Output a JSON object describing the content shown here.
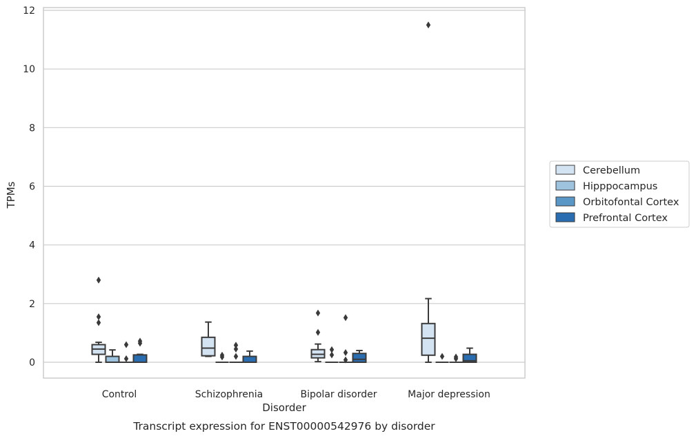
{
  "chart_data": {
    "type": "box",
    "title": "",
    "caption": "Transcript expression for ENST00000542976 by disorder",
    "xlabel": "Disorder",
    "ylabel": "TPMs",
    "ylim": [
      -0.55,
      12.1
    ],
    "yticks": [
      0,
      2,
      4,
      6,
      8,
      10,
      12
    ],
    "grid": "horizontal",
    "legend_position": "right-center",
    "categories": [
      "Control",
      "Schizophrenia",
      "Bipolar disorder",
      "Major depression"
    ],
    "series": [
      {
        "name": "Cerebellum",
        "color": "#d4e3f2",
        "boxes": [
          {
            "whisker_low": 0.0,
            "q1": 0.27,
            "median": 0.45,
            "q3": 0.6,
            "whisker_high": 0.68,
            "outliers": [
              1.35,
              1.55,
              2.8
            ]
          },
          {
            "whisker_low": 0.2,
            "q1": 0.22,
            "median": 0.48,
            "q3": 0.85,
            "whisker_high": 1.37,
            "outliers": []
          },
          {
            "whisker_low": 0.02,
            "q1": 0.15,
            "median": 0.27,
            "q3": 0.43,
            "whisker_high": 0.62,
            "outliers": [
              1.02,
              1.68
            ]
          },
          {
            "whisker_low": 0.0,
            "q1": 0.24,
            "median": 0.82,
            "q3": 1.32,
            "whisker_high": 2.17,
            "outliers": [
              11.5
            ]
          }
        ]
      },
      {
        "name": "Hipppocampus",
        "color": "#9dc3de",
        "boxes": [
          {
            "whisker_low": 0.0,
            "q1": 0.0,
            "median": 0.0,
            "q3": 0.2,
            "whisker_high": 0.42,
            "outliers": []
          },
          {
            "whisker_low": 0.0,
            "q1": 0.0,
            "median": 0.0,
            "q3": 0.0,
            "whisker_high": 0.0,
            "outliers": [
              0.18,
              0.24
            ]
          },
          {
            "whisker_low": 0.0,
            "q1": 0.0,
            "median": 0.0,
            "q3": 0.0,
            "whisker_high": 0.0,
            "outliers": [
              0.25,
              0.43
            ]
          },
          {
            "whisker_low": 0.0,
            "q1": 0.0,
            "median": 0.0,
            "q3": 0.0,
            "whisker_high": 0.0,
            "outliers": [
              0.2
            ]
          }
        ]
      },
      {
        "name": "Orbitofontal Cortex",
        "color": "#5a97c6",
        "boxes": [
          {
            "whisker_low": 0.0,
            "q1": 0.0,
            "median": 0.0,
            "q3": 0.0,
            "whisker_high": 0.0,
            "outliers": [
              0.12,
              0.6
            ]
          },
          {
            "whisker_low": 0.0,
            "q1": 0.0,
            "median": 0.0,
            "q3": 0.0,
            "whisker_high": 0.0,
            "outliers": [
              0.2,
              0.45,
              0.58
            ]
          },
          {
            "whisker_low": 0.0,
            "q1": 0.0,
            "median": 0.0,
            "q3": 0.0,
            "whisker_high": 0.0,
            "outliers": [
              0.08,
              0.33,
              1.52
            ]
          },
          {
            "whisker_low": 0.0,
            "q1": 0.0,
            "median": 0.0,
            "q3": 0.0,
            "whisker_high": 0.0,
            "outliers": [
              0.12,
              0.18
            ]
          }
        ]
      },
      {
        "name": "Prefrontal Cortex",
        "color": "#2a6db0",
        "boxes": [
          {
            "whisker_low": 0.0,
            "q1": 0.0,
            "median": 0.0,
            "q3": 0.25,
            "whisker_high": 0.27,
            "outliers": [
              0.65,
              0.72
            ]
          },
          {
            "whisker_low": 0.0,
            "q1": 0.0,
            "median": 0.0,
            "q3": 0.2,
            "whisker_high": 0.38,
            "outliers": []
          },
          {
            "whisker_low": 0.0,
            "q1": 0.0,
            "median": 0.1,
            "q3": 0.3,
            "whisker_high": 0.4,
            "outliers": []
          },
          {
            "whisker_low": 0.0,
            "q1": 0.0,
            "median": 0.05,
            "q3": 0.27,
            "whisker_high": 0.48,
            "outliers": []
          }
        ]
      }
    ]
  }
}
